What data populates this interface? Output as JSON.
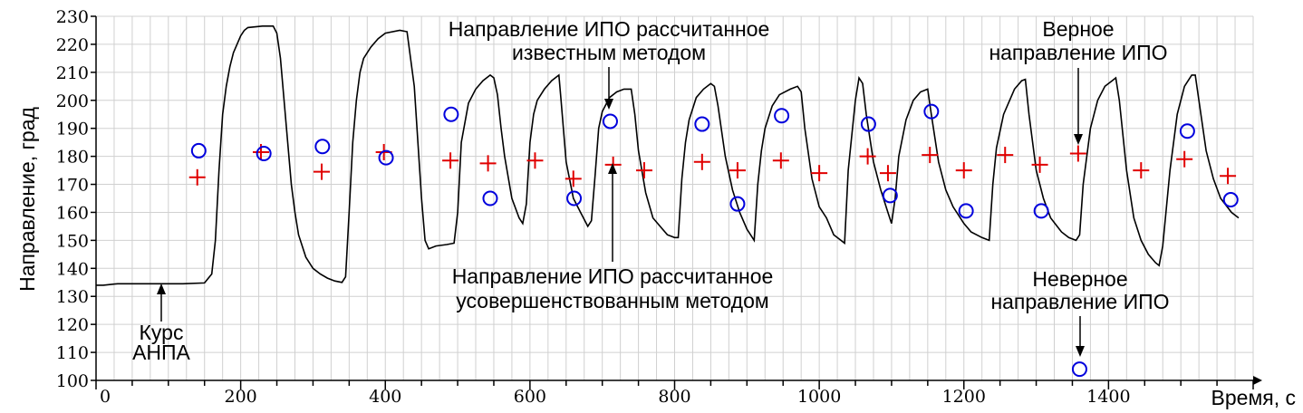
{
  "chart_data": {
    "type": "line",
    "ylabel": "Направление, град",
    "xlabel": "Время, с",
    "xlim": [
      0,
      1600
    ],
    "ylim": [
      100,
      230
    ],
    "x_ticks": [
      0,
      200,
      400,
      600,
      800,
      1000,
      1200,
      1400
    ],
    "y_ticks": [
      100,
      110,
      120,
      130,
      140,
      150,
      160,
      170,
      180,
      190,
      200,
      210,
      220,
      230
    ],
    "grid": true,
    "series": [
      {
        "kind": "line",
        "points": [
          [
            0,
            134
          ],
          [
            10,
            134
          ],
          [
            30,
            134.5
          ],
          [
            60,
            134.5
          ],
          [
            90,
            134.5
          ],
          [
            120,
            134.5
          ],
          [
            150,
            134.8
          ],
          [
            160,
            138
          ],
          [
            165,
            150
          ],
          [
            170,
            175
          ],
          [
            175,
            195
          ],
          [
            180,
            205
          ],
          [
            185,
            212
          ],
          [
            190,
            217
          ],
          [
            195,
            220
          ],
          [
            200,
            223
          ],
          [
            205,
            225
          ],
          [
            210,
            226
          ],
          [
            230,
            226.5
          ],
          [
            245,
            226.5
          ],
          [
            250,
            224
          ],
          [
            255,
            215
          ],
          [
            260,
            200
          ],
          [
            265,
            185
          ],
          [
            270,
            170
          ],
          [
            275,
            160
          ],
          [
            280,
            152
          ],
          [
            290,
            144
          ],
          [
            300,
            140
          ],
          [
            310,
            138
          ],
          [
            320,
            136.5
          ],
          [
            330,
            135.5
          ],
          [
            340,
            135
          ],
          [
            345,
            137
          ],
          [
            350,
            160
          ],
          [
            355,
            185
          ],
          [
            360,
            200
          ],
          [
            365,
            210
          ],
          [
            370,
            215
          ],
          [
            380,
            219
          ],
          [
            390,
            222
          ],
          [
            400,
            224
          ],
          [
            420,
            225
          ],
          [
            430,
            224.5
          ],
          [
            440,
            205
          ],
          [
            445,
            185
          ],
          [
            450,
            165
          ],
          [
            455,
            150
          ],
          [
            460,
            147
          ],
          [
            470,
            148
          ],
          [
            485,
            148.5
          ],
          [
            495,
            149
          ],
          [
            500,
            160
          ],
          [
            505,
            185
          ],
          [
            515,
            199
          ],
          [
            525,
            204
          ],
          [
            535,
            207
          ],
          [
            545,
            209
          ],
          [
            550,
            208
          ],
          [
            555,
            202
          ],
          [
            560,
            190
          ],
          [
            565,
            180
          ],
          [
            575,
            165
          ],
          [
            585,
            158
          ],
          [
            590,
            156
          ],
          [
            595,
            163
          ],
          [
            600,
            185
          ],
          [
            605,
            195
          ],
          [
            610,
            200
          ],
          [
            620,
            204
          ],
          [
            630,
            207
          ],
          [
            640,
            209
          ],
          [
            643,
            200
          ],
          [
            650,
            178
          ],
          [
            660,
            165
          ],
          [
            670,
            160
          ],
          [
            680,
            155
          ],
          [
            685,
            157
          ],
          [
            690,
            173
          ],
          [
            695,
            190
          ],
          [
            700,
            196
          ],
          [
            710,
            201
          ],
          [
            720,
            203
          ],
          [
            730,
            204
          ],
          [
            740,
            204
          ],
          [
            745,
            195
          ],
          [
            750,
            182
          ],
          [
            760,
            167
          ],
          [
            770,
            158
          ],
          [
            780,
            155
          ],
          [
            790,
            152
          ],
          [
            800,
            151
          ],
          [
            805,
            151
          ],
          [
            810,
            172
          ],
          [
            815,
            185
          ],
          [
            820,
            193
          ],
          [
            830,
            201
          ],
          [
            840,
            204
          ],
          [
            850,
            206
          ],
          [
            855,
            205
          ],
          [
            860,
            198
          ],
          [
            870,
            180
          ],
          [
            880,
            168
          ],
          [
            890,
            160
          ],
          [
            900,
            154
          ],
          [
            905,
            152
          ],
          [
            910,
            150
          ],
          [
            915,
            170
          ],
          [
            920,
            182
          ],
          [
            925,
            190
          ],
          [
            935,
            198
          ],
          [
            945,
            202
          ],
          [
            960,
            204
          ],
          [
            970,
            205
          ],
          [
            975,
            203
          ],
          [
            980,
            190
          ],
          [
            990,
            172
          ],
          [
            1000,
            162
          ],
          [
            1010,
            158
          ],
          [
            1020,
            152
          ],
          [
            1030,
            150
          ],
          [
            1035,
            149
          ],
          [
            1040,
            175
          ],
          [
            1050,
            200
          ],
          [
            1055,
            208
          ],
          [
            1060,
            206
          ],
          [
            1065,
            195
          ],
          [
            1075,
            178
          ],
          [
            1085,
            168
          ],
          [
            1095,
            160
          ],
          [
            1100,
            156
          ],
          [
            1105,
            165
          ],
          [
            1110,
            180
          ],
          [
            1120,
            193
          ],
          [
            1130,
            200
          ],
          [
            1140,
            203
          ],
          [
            1150,
            204
          ],
          [
            1155,
            195
          ],
          [
            1165,
            178
          ],
          [
            1175,
            168
          ],
          [
            1185,
            162
          ],
          [
            1200,
            156
          ],
          [
            1210,
            153
          ],
          [
            1225,
            151
          ],
          [
            1235,
            150
          ],
          [
            1240,
            170
          ],
          [
            1245,
            183
          ],
          [
            1255,
            195
          ],
          [
            1270,
            204
          ],
          [
            1280,
            207
          ],
          [
            1285,
            207.5
          ],
          [
            1290,
            195
          ],
          [
            1300,
            175
          ],
          [
            1310,
            165
          ],
          [
            1320,
            158
          ],
          [
            1335,
            153
          ],
          [
            1345,
            151
          ],
          [
            1355,
            150
          ],
          [
            1360,
            152
          ],
          [
            1365,
            170
          ],
          [
            1375,
            190
          ],
          [
            1385,
            200
          ],
          [
            1395,
            205
          ],
          [
            1405,
            207
          ],
          [
            1410,
            208
          ],
          [
            1415,
            200
          ],
          [
            1425,
            175
          ],
          [
            1435,
            158
          ],
          [
            1445,
            150
          ],
          [
            1455,
            145
          ],
          [
            1465,
            142
          ],
          [
            1470,
            141
          ],
          [
            1475,
            148
          ],
          [
            1485,
            175
          ],
          [
            1495,
            195
          ],
          [
            1505,
            205
          ],
          [
            1515,
            209
          ],
          [
            1520,
            209
          ],
          [
            1525,
            200
          ],
          [
            1535,
            182
          ],
          [
            1545,
            172
          ],
          [
            1555,
            165
          ],
          [
            1570,
            160
          ],
          [
            1580,
            158
          ]
        ]
      },
      {
        "kind": "plus",
        "points": [
          [
            140,
            172.5
          ],
          [
            228,
            181.5
          ],
          [
            312,
            174.5
          ],
          [
            398,
            181.5
          ],
          [
            490,
            178.5
          ],
          [
            542,
            177.5
          ],
          [
            607,
            178.5
          ],
          [
            660,
            172
          ],
          [
            715,
            177
          ],
          [
            758,
            175
          ],
          [
            838,
            178
          ],
          [
            887,
            175
          ],
          [
            947,
            178.5
          ],
          [
            1000,
            174
          ],
          [
            1067,
            180
          ],
          [
            1095,
            174
          ],
          [
            1153,
            180.5
          ],
          [
            1200,
            175
          ],
          [
            1257,
            180.5
          ],
          [
            1305,
            177
          ],
          [
            1358,
            181
          ],
          [
            1445,
            175
          ],
          [
            1505,
            179
          ],
          [
            1565,
            173
          ]
        ]
      },
      {
        "kind": "circle",
        "points": [
          [
            142,
            182
          ],
          [
            232,
            181
          ],
          [
            313,
            183.5
          ],
          [
            401,
            179.5
          ],
          [
            491,
            195
          ],
          [
            545,
            165
          ],
          [
            661,
            165
          ],
          [
            711,
            192.5
          ],
          [
            838,
            191.5
          ],
          [
            887,
            163
          ],
          [
            948,
            194.5
          ],
          [
            1068,
            191.5
          ],
          [
            1098,
            166
          ],
          [
            1155,
            196
          ],
          [
            1203,
            160.5
          ],
          [
            1307,
            160.5
          ],
          [
            1360,
            104
          ],
          [
            1509,
            189
          ],
          [
            1569,
            164.5
          ]
        ]
      }
    ],
    "annotations": [
      {
        "lines": [
          "Курс",
          "АНПА"
        ],
        "target": [
          85,
          134.5
        ]
      },
      {
        "lines": [
          "Направление ИПО рассчитанное",
          "известным методом"
        ],
        "target": [
          711,
          192.5
        ]
      },
      {
        "lines": [
          "Направление ИПО рассчитанное",
          "усовершенствованным методом"
        ],
        "target": [
          715,
          177
        ]
      },
      {
        "lines": [
          "Верное",
          "направление ИПО"
        ],
        "target": [
          1358,
          181
        ]
      },
      {
        "lines": [
          "Неверное",
          "направление ИПО"
        ],
        "target": [
          1360,
          104
        ]
      }
    ]
  }
}
